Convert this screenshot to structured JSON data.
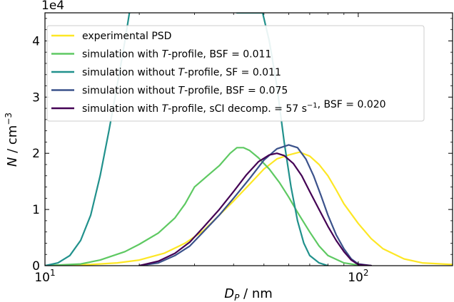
{
  "chart_data": {
    "type": "line",
    "xlabel_main": "D",
    "xlabel_sub": "P",
    "xlabel_unit": " / nm",
    "ylabel_main": "N",
    "ylabel_unit": " / cm",
    "ylabel_exp": "−3",
    "y_offset_label": "1e4",
    "xscale": "log",
    "xlim": [
      10,
      200
    ],
    "ylim": [
      0,
      4.5
    ],
    "x_ticks": [
      {
        "value": 10,
        "base": "10",
        "exp": "1"
      },
      {
        "value": 100,
        "base": "10",
        "exp": "2"
      }
    ],
    "y_ticks": [
      {
        "value": 0,
        "label": "0"
      },
      {
        "value": 1,
        "label": "1"
      },
      {
        "value": 2,
        "label": "2"
      },
      {
        "value": 3,
        "label": "3"
      },
      {
        "value": 4,
        "label": "4"
      }
    ],
    "legend_position": "top-left",
    "series": [
      {
        "name": "experimental PSD",
        "legend_parts": [
          {
            "t": "experimental PSD"
          }
        ],
        "color": "#fde725",
        "points": [
          [
            10,
            0
          ],
          [
            14,
            0.02
          ],
          [
            17,
            0.05
          ],
          [
            20,
            0.1
          ],
          [
            24,
            0.22
          ],
          [
            28,
            0.4
          ],
          [
            32,
            0.62
          ],
          [
            36,
            0.9
          ],
          [
            40,
            1.15
          ],
          [
            45,
            1.45
          ],
          [
            50,
            1.72
          ],
          [
            55,
            1.9
          ],
          [
            60,
            1.97
          ],
          [
            65,
            2.02
          ],
          [
            70,
            1.95
          ],
          [
            75,
            1.8
          ],
          [
            80,
            1.6
          ],
          [
            85,
            1.35
          ],
          [
            90,
            1.1
          ],
          [
            100,
            0.75
          ],
          [
            110,
            0.48
          ],
          [
            120,
            0.3
          ],
          [
            140,
            0.12
          ],
          [
            160,
            0.05
          ],
          [
            200,
            0.02
          ]
        ]
      },
      {
        "name": "simulation with T-profile, BSF = 0.011",
        "legend_parts": [
          {
            "t": "simulation with "
          },
          {
            "t": "T",
            "i": true
          },
          {
            "t": "-profile, BSF = 0.011"
          }
        ],
        "color": "#5ec962",
        "points": [
          [
            10,
            0
          ],
          [
            13,
            0.03
          ],
          [
            15,
            0.1
          ],
          [
            18,
            0.25
          ],
          [
            20,
            0.38
          ],
          [
            23,
            0.58
          ],
          [
            26,
            0.85
          ],
          [
            28,
            1.1
          ],
          [
            30,
            1.4
          ],
          [
            33,
            1.6
          ],
          [
            36,
            1.78
          ],
          [
            39,
            2.0
          ],
          [
            41,
            2.1
          ],
          [
            43,
            2.1
          ],
          [
            45,
            2.05
          ],
          [
            48,
            1.92
          ],
          [
            52,
            1.72
          ],
          [
            56,
            1.48
          ],
          [
            60,
            1.22
          ],
          [
            64,
            0.95
          ],
          [
            70,
            0.6
          ],
          [
            75,
            0.35
          ],
          [
            80,
            0.18
          ],
          [
            90,
            0.05
          ],
          [
            100,
            0.01
          ],
          [
            110,
            0
          ]
        ]
      },
      {
        "name": "simulation without T-profile, SF = 0.011",
        "legend_parts": [
          {
            "t": "simulation without "
          },
          {
            "t": "T",
            "i": true
          },
          {
            "t": "-profile, SF = 0.011"
          }
        ],
        "color": "#21918c",
        "points": [
          [
            10,
            0
          ],
          [
            11,
            0.05
          ],
          [
            12,
            0.18
          ],
          [
            13,
            0.45
          ],
          [
            14,
            0.9
          ],
          [
            15,
            1.6
          ],
          [
            16,
            2.4
          ],
          [
            17,
            3.2
          ],
          [
            18,
            4.0
          ],
          [
            18.6,
            4.5
          ],
          [
            18.6,
            null
          ],
          [
            41,
            null
          ],
          [
            41,
            4.5
          ],
          [
            43,
            4.5
          ],
          [
            45,
            4.5
          ],
          [
            47,
            4.5
          ],
          [
            49.5,
            4.5
          ],
          [
            52,
            4.0
          ],
          [
            55,
            3.2
          ],
          [
            58,
            2.2
          ],
          [
            61,
            1.4
          ],
          [
            64,
            0.8
          ],
          [
            67,
            0.4
          ],
          [
            70,
            0.18
          ],
          [
            75,
            0.05
          ],
          [
            80,
            0
          ]
        ]
      },
      {
        "name": "simulation without T-profile, BSF = 0.075",
        "legend_parts": [
          {
            "t": "simulation without "
          },
          {
            "t": "T",
            "i": true
          },
          {
            "t": "-profile, BSF = 0.075"
          }
        ],
        "color": "#3b528b",
        "points": [
          [
            20,
            0
          ],
          [
            23,
            0.05
          ],
          [
            26,
            0.18
          ],
          [
            29,
            0.35
          ],
          [
            32,
            0.6
          ],
          [
            36,
            0.9
          ],
          [
            40,
            1.2
          ],
          [
            45,
            1.55
          ],
          [
            50,
            1.88
          ],
          [
            55,
            2.08
          ],
          [
            60,
            2.15
          ],
          [
            64,
            2.1
          ],
          [
            68,
            1.9
          ],
          [
            72,
            1.6
          ],
          [
            76,
            1.25
          ],
          [
            80,
            0.9
          ],
          [
            85,
            0.55
          ],
          [
            90,
            0.3
          ],
          [
            95,
            0.12
          ],
          [
            100,
            0.03
          ],
          [
            110,
            0
          ]
        ]
      },
      {
        "name": "simulation with T-profile, sCI decomp. = 57 s−1, BSF = 0.020",
        "legend_parts": [
          {
            "t": "simulation with "
          },
          {
            "t": "T",
            "i": true
          },
          {
            "t": "-profile, sCI decomp. = 57 s"
          },
          {
            "t": "−1",
            "sup": true
          },
          {
            "t": ", BSF = 0.020"
          }
        ],
        "color": "#440154",
        "points": [
          [
            20,
            0
          ],
          [
            23,
            0.08
          ],
          [
            26,
            0.22
          ],
          [
            29,
            0.42
          ],
          [
            32,
            0.68
          ],
          [
            36,
            1.0
          ],
          [
            40,
            1.32
          ],
          [
            44,
            1.62
          ],
          [
            48,
            1.85
          ],
          [
            52,
            1.97
          ],
          [
            55,
            2.0
          ],
          [
            58,
            1.96
          ],
          [
            62,
            1.82
          ],
          [
            66,
            1.6
          ],
          [
            70,
            1.32
          ],
          [
            75,
            1.0
          ],
          [
            80,
            0.7
          ],
          [
            85,
            0.45
          ],
          [
            90,
            0.25
          ],
          [
            95,
            0.1
          ],
          [
            100,
            0.02
          ],
          [
            110,
            0
          ]
        ]
      }
    ]
  }
}
